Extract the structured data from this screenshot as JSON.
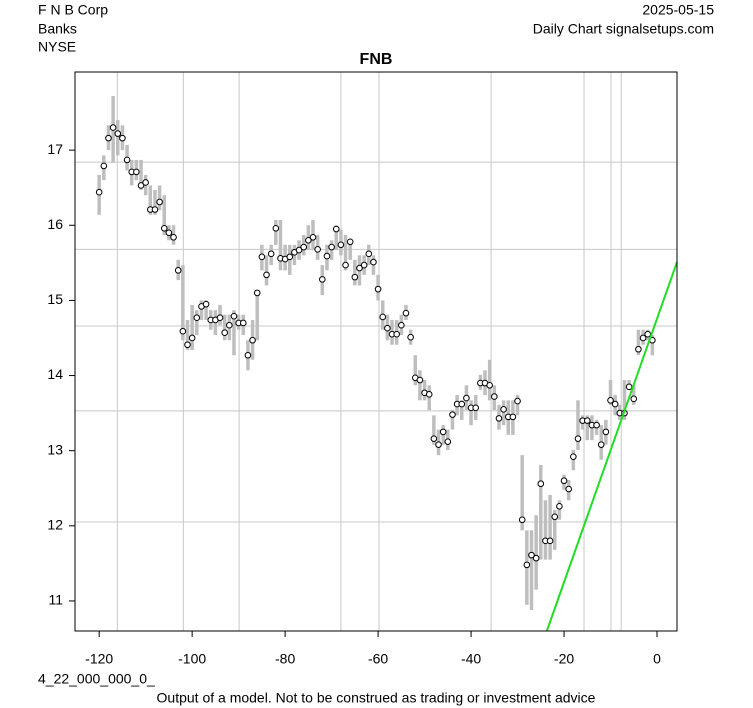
{
  "header": {
    "company": "F N B Corp",
    "sector": "Banks",
    "exchange": "NYSE",
    "date": "2025-05-15",
    "source": "Daily Chart signalsetups.com"
  },
  "footer": {
    "code": "4_22_000_000_0_",
    "disclaimer": "Output of a model. Not to be construed as trading or investment advice"
  },
  "chart_data": {
    "type": "range",
    "title": "FNB",
    "x": [
      -120,
      -119,
      -118,
      -117,
      -116,
      -115,
      -114,
      -113,
      -112,
      -111,
      -110,
      -109,
      -108,
      -107,
      -106,
      -105,
      -104,
      -103,
      -102,
      -101,
      -100,
      -99,
      -98,
      -97,
      -96,
      -95,
      -94,
      -93,
      -92,
      -91,
      -90,
      -89,
      -88,
      -87,
      -86,
      -85,
      -84,
      -83,
      -82,
      -81,
      -80,
      -79,
      -78,
      -77,
      -76,
      -75,
      -74,
      -73,
      -72,
      -71,
      -70,
      -69,
      -68,
      -67,
      -66,
      -65,
      -64,
      -63,
      -62,
      -61,
      -60,
      -59,
      -58,
      -57,
      -56,
      -55,
      -54,
      -53,
      -52,
      -51,
      -50,
      -49,
      -48,
      -47,
      -46,
      -45,
      -44,
      -43,
      -42,
      -41,
      -40,
      -39,
      -38,
      -37,
      -36,
      -35,
      -34,
      -33,
      -32,
      -31,
      -30,
      -29,
      -28,
      -27,
      -26,
      -25,
      -24,
      -23,
      -22,
      -21,
      -20,
      -19,
      -18,
      -17,
      -16,
      -15,
      -14,
      -13,
      -12,
      -11,
      -10,
      -9,
      -8,
      -7,
      -6,
      -5,
      -4,
      -3,
      -2,
      -1
    ],
    "high": [
      16.67,
      16.93,
      17.33,
      17.72,
      17.4,
      17.33,
      17.07,
      16.87,
      16.87,
      16.87,
      16.67,
      16.53,
      16.47,
      16.53,
      16.4,
      16.0,
      16.0,
      15.54,
      15.47,
      14.74,
      14.94,
      14.87,
      15.0,
      15.0,
      14.87,
      14.87,
      14.94,
      14.81,
      14.81,
      14.87,
      14.81,
      14.81,
      14.47,
      14.74,
      15.14,
      15.74,
      15.6,
      15.74,
      16.07,
      16.07,
      15.74,
      15.74,
      15.74,
      15.8,
      15.87,
      16.0,
      16.07,
      15.87,
      15.47,
      15.74,
      15.8,
      16.0,
      15.94,
      15.87,
      15.8,
      15.54,
      15.6,
      15.6,
      15.74,
      15.6,
      15.34,
      15.0,
      14.81,
      14.74,
      14.74,
      14.81,
      14.94,
      14.61,
      14.27,
      14.07,
      13.94,
      13.87,
      13.47,
      13.28,
      13.34,
      13.28,
      13.54,
      13.74,
      13.67,
      13.87,
      13.67,
      13.74,
      14.01,
      14.07,
      14.21,
      13.87,
      13.61,
      13.67,
      13.67,
      13.67,
      13.74,
      12.94,
      11.94,
      11.94,
      12.14,
      12.81,
      12.34,
      12.41,
      12.21,
      12.34,
      12.68,
      12.61,
      13.01,
      13.67,
      13.47,
      13.47,
      13.47,
      13.41,
      13.34,
      13.41,
      13.94,
      13.74,
      13.61,
      13.94,
      13.94,
      13.87,
      14.61,
      14.61,
      14.61,
      14.54
    ],
    "low": [
      16.14,
      16.6,
      17.0,
      16.83,
      16.93,
      17.0,
      16.73,
      16.53,
      16.6,
      16.47,
      16.4,
      16.14,
      16.14,
      16.2,
      15.87,
      15.8,
      15.74,
      15.27,
      14.47,
      14.34,
      14.34,
      14.54,
      14.74,
      14.74,
      14.61,
      14.54,
      14.67,
      14.47,
      14.47,
      14.27,
      14.61,
      14.54,
      14.07,
      14.21,
      14.47,
      15.4,
      15.2,
      15.47,
      15.74,
      15.4,
      15.4,
      15.34,
      15.47,
      15.54,
      15.6,
      15.67,
      15.67,
      15.54,
      15.07,
      15.4,
      15.54,
      15.67,
      15.6,
      15.4,
      15.54,
      15.2,
      15.2,
      15.34,
      15.47,
      15.34,
      15.0,
      14.61,
      14.47,
      14.41,
      14.41,
      14.54,
      14.74,
      14.41,
      13.87,
      13.67,
      13.67,
      13.54,
      13.08,
      12.94,
      13.08,
      13.01,
      13.28,
      13.47,
      13.41,
      13.54,
      13.34,
      13.41,
      13.81,
      13.74,
      13.67,
      13.54,
      13.28,
      13.34,
      13.21,
      13.21,
      13.47,
      11.94,
      10.95,
      10.88,
      11.15,
      11.55,
      11.55,
      11.55,
      11.68,
      12.08,
      12.48,
      12.34,
      12.74,
      13.01,
      13.28,
      13.14,
      13.14,
      13.21,
      12.88,
      13.08,
      13.61,
      13.47,
      13.41,
      13.41,
      13.81,
      13.61,
      14.27,
      14.41,
      14.47,
      14.27
    ],
    "close": [
      16.44,
      16.79,
      17.16,
      17.3,
      17.22,
      17.16,
      16.87,
      16.71,
      16.71,
      16.53,
      16.57,
      16.21,
      16.21,
      16.31,
      15.96,
      15.9,
      15.84,
      15.4,
      14.59,
      14.41,
      14.5,
      14.77,
      14.92,
      14.95,
      14.74,
      14.74,
      14.77,
      14.57,
      14.67,
      14.79,
      14.7,
      14.7,
      14.27,
      14.47,
      15.1,
      15.58,
      15.34,
      15.62,
      15.96,
      15.56,
      15.55,
      15.58,
      15.64,
      15.67,
      15.71,
      15.8,
      15.84,
      15.68,
      15.28,
      15.59,
      15.71,
      15.95,
      15.74,
      15.47,
      15.78,
      15.31,
      15.43,
      15.47,
      15.62,
      15.51,
      15.15,
      14.78,
      14.63,
      14.55,
      14.55,
      14.67,
      14.83,
      14.51,
      13.97,
      13.94,
      13.77,
      13.75,
      13.16,
      13.08,
      13.25,
      13.12,
      13.48,
      13.62,
      13.62,
      13.7,
      13.57,
      13.57,
      13.9,
      13.9,
      13.87,
      13.72,
      13.43,
      13.55,
      13.45,
      13.45,
      13.66,
      12.08,
      11.48,
      11.61,
      11.57,
      12.56,
      11.8,
      11.8,
      12.12,
      12.26,
      12.6,
      12.49,
      12.92,
      13.16,
      13.4,
      13.4,
      13.34,
      13.34,
      13.08,
      13.25,
      13.67,
      13.62,
      13.5,
      13.5,
      13.85,
      13.69,
      14.35,
      14.5,
      14.55,
      14.47
    ],
    "bar_color": "#bebebe",
    "trend_line": {
      "x": [
        -23.7,
        4.3
      ],
      "y": [
        10.6,
        15.51
      ],
      "color": "#22dd22"
    },
    "xlim": [
      -125.2,
      4.3
    ],
    "ylim": [
      10.6,
      18.04
    ],
    "xticks": [
      -120,
      -100,
      -80,
      -60,
      -40,
      -20,
      0
    ],
    "yticks": [
      11,
      12,
      13,
      14,
      15,
      16,
      17
    ],
    "grid_x": [
      -116.1,
      -101.9,
      -89.9,
      -68,
      -59.8,
      -35.7,
      -15.7,
      -9.9,
      -7.7
    ],
    "grid_y": [
      16.84,
      15.68,
      14.66,
      13.53,
      12.05
    ]
  }
}
